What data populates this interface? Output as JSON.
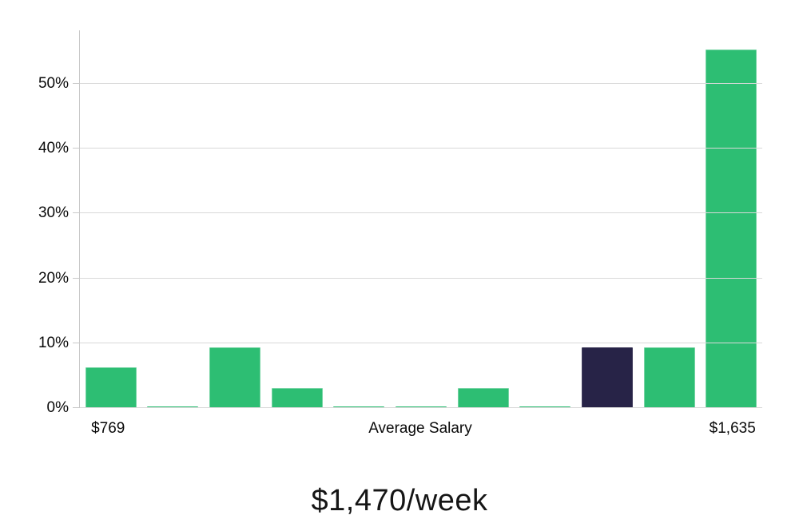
{
  "chart_data": {
    "type": "bar",
    "title": "$1,470/week",
    "values": [
      6.3,
      0.2,
      9.3,
      3.1,
      0.2,
      0.2,
      3.1,
      0.2,
      9.3,
      9.3,
      55.3
    ],
    "highlight_index": 8,
    "x_tick_labels": [
      "$769",
      "",
      "",
      "",
      "",
      "Average Salary",
      "",
      "",
      "",
      "",
      "$1,635"
    ],
    "y_ticks": [
      0,
      10,
      20,
      30,
      40,
      50
    ],
    "y_tick_labels": [
      "0%",
      "10%",
      "20%",
      "30%",
      "40%",
      "50%"
    ],
    "ylabel": "",
    "xlabel": "",
    "ylim": [
      0,
      58
    ],
    "grid": true,
    "legend": false,
    "colors": {
      "bar": "#2dbe73",
      "highlight_bar": "#272347",
      "gridline": "#d9d9d9",
      "axis_line": "#c9c9c9",
      "text": "#0a0a0a",
      "background": "#ffffff"
    }
  }
}
